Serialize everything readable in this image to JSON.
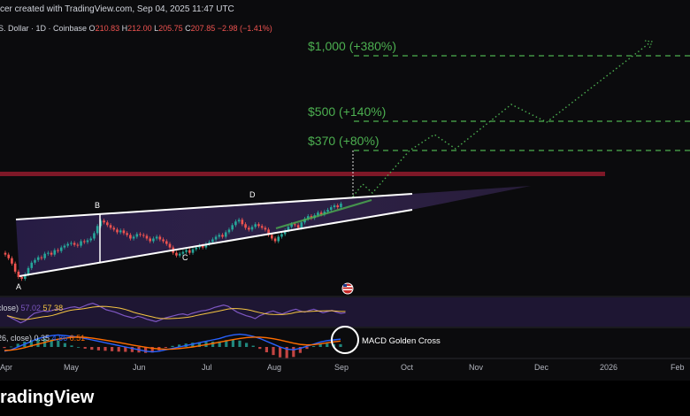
{
  "header": {
    "creator_text": "cer created with TradingView.com, Sep 04, 2025 11:47 UTC"
  },
  "chart_data": {
    "type": "candlestick",
    "symbol_text": "S. Dollar · 1D · Coinbase",
    "ohlc": {
      "open_label": "O",
      "open": "210.83",
      "high_label": "H",
      "high": "212.00",
      "low_label": "L",
      "low": "205.75",
      "close_label": "C",
      "close": "207.85",
      "change": "−2.98 (−1.41%)"
    },
    "x_axis_labels": [
      "Apr",
      "May",
      "Jun",
      "Jul",
      "Aug",
      "Sep",
      "Oct",
      "Nov",
      "Dec",
      "2026",
      "Feb"
    ],
    "targets": [
      {
        "label": "$1,000 (+380%)",
        "price": 1000
      },
      {
        "label": "$500 (+140%)",
        "price": 500
      },
      {
        "label": "$370 (+80%)",
        "price": 370
      }
    ],
    "pattern_points": [
      "A",
      "B",
      "C",
      "D"
    ],
    "candles_close": [
      150,
      146,
      140,
      131,
      125,
      123,
      128,
      135,
      141,
      144,
      147,
      146,
      151,
      152,
      150,
      155,
      154,
      158,
      160,
      162,
      163,
      161,
      160,
      165,
      164,
      166,
      168,
      174,
      182,
      188,
      186,
      183,
      180,
      178,
      175,
      177,
      174,
      172,
      168,
      170,
      173,
      172,
      171,
      168,
      165,
      168,
      170,
      167,
      165,
      162,
      158,
      152,
      149,
      151,
      153,
      155,
      152,
      156,
      158,
      160,
      158,
      162,
      164,
      167,
      170,
      172,
      170,
      175,
      178,
      183,
      187,
      189,
      184,
      180,
      178,
      181,
      184,
      182,
      180,
      178,
      172,
      168,
      165,
      170,
      173,
      177,
      181,
      184,
      183,
      180,
      186,
      190,
      193,
      191,
      194,
      197,
      195,
      198,
      200,
      203,
      205,
      203,
      207
    ],
    "rsi": {
      "label": "close)",
      "value1": "57.02",
      "value2": "57.38",
      "values": [
        52,
        48,
        44,
        40,
        43,
        50,
        56,
        58,
        60,
        59,
        61,
        63,
        62,
        64,
        66,
        67,
        65,
        68,
        71,
        73,
        70,
        66,
        62,
        60,
        58,
        55,
        52,
        50,
        48,
        51,
        49,
        46,
        44,
        42,
        45,
        48,
        50,
        52,
        54,
        55,
        53,
        56,
        58,
        60,
        61,
        63,
        66,
        68,
        70,
        68,
        63,
        58,
        55,
        52,
        50,
        47,
        52,
        55,
        58,
        60,
        57,
        55,
        58,
        61,
        63,
        60,
        58,
        61,
        63,
        60,
        57,
        59,
        61,
        58,
        56,
        57
      ]
    },
    "macd": {
      "label": "26, close)",
      "value1": "0.35",
      "value2": "4.86",
      "value3": "6.51",
      "annotation": "MACD Golden Cross",
      "macd_line": [
        -3,
        -2,
        0,
        2,
        4,
        6,
        7,
        8,
        8.5,
        8,
        7.5,
        7,
        6,
        5,
        4,
        3,
        2,
        1,
        0,
        -1,
        -2,
        -3,
        -3.5,
        -3,
        -2,
        -1,
        0,
        1,
        2,
        3,
        4,
        5,
        6,
        7.5,
        8.5,
        9,
        8.5,
        7.5,
        6,
        4,
        2,
        0,
        -1.5,
        -2,
        -1,
        0.5,
        2,
        3.5,
        4.5,
        5,
        5.5
      ],
      "signal_line": [
        -2.5,
        -2.2,
        -1.5,
        -0.5,
        0.8,
        2,
        3.2,
        4.5,
        5.5,
        6.2,
        6.8,
        7,
        6.8,
        6.3,
        5.6,
        4.8,
        4,
        3.2,
        2.3,
        1.4,
        0.6,
        -0.2,
        -0.9,
        -1.4,
        -1.6,
        -1.5,
        -1.1,
        -0.6,
        0,
        0.8,
        1.6,
        2.5,
        3.4,
        4.3,
        5.2,
        6,
        6.6,
        6.9,
        6.9,
        6.5,
        5.8,
        4.9,
        3.8,
        2.7,
        1.8,
        1.4,
        1.6,
        2.2,
        2.9,
        3.6,
        4.2
      ]
    }
  },
  "footer": {
    "brand": "radingView"
  },
  "colors": {
    "bull": "#26a69a",
    "bear": "#ef5350",
    "target": "#4caf50",
    "resistance": "#8b1a2a",
    "wedge_fill": "#2a1f45",
    "rsi_line": "#7e57c2",
    "rsi_ma": "#f5c542",
    "macd_line": "#2962ff",
    "signal_line": "#ff6d00"
  }
}
